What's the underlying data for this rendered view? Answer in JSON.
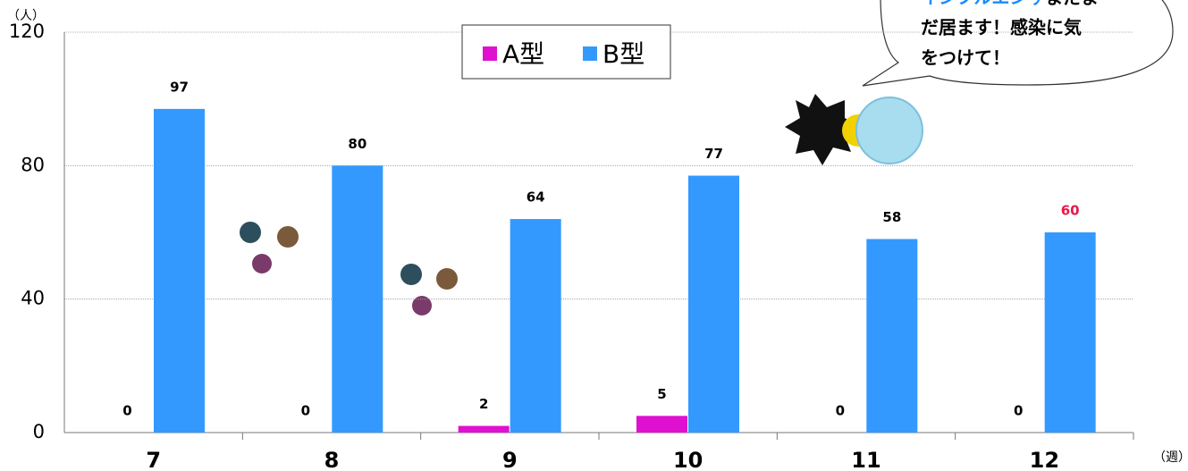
{
  "chart_data": {
    "type": "bar",
    "y_label": "（人）",
    "x_label": "（週）",
    "categories": [
      "7",
      "8",
      "9",
      "10",
      "11",
      "12"
    ],
    "series": [
      {
        "name": "A型",
        "color": "#e010d0",
        "values": [
          0,
          0,
          2,
          5,
          0,
          0
        ]
      },
      {
        "name": "B型",
        "color": "#3399ff",
        "values": [
          97,
          80,
          64,
          77,
          58,
          60
        ]
      }
    ],
    "ylim": [
      0,
      120
    ],
    "yticks": [
      0,
      40,
      80,
      120
    ],
    "grid": true,
    "legend": "top",
    "highlight_label": {
      "series": 1,
      "index": 5,
      "color": "#e8174a"
    },
    "annotation": {
      "highlight": "インフルエンザ",
      "highlight_color": "#1a8cff",
      "lines": [
        "まだま",
        "だ居ます！感染に気",
        "をつけて！"
      ]
    }
  }
}
